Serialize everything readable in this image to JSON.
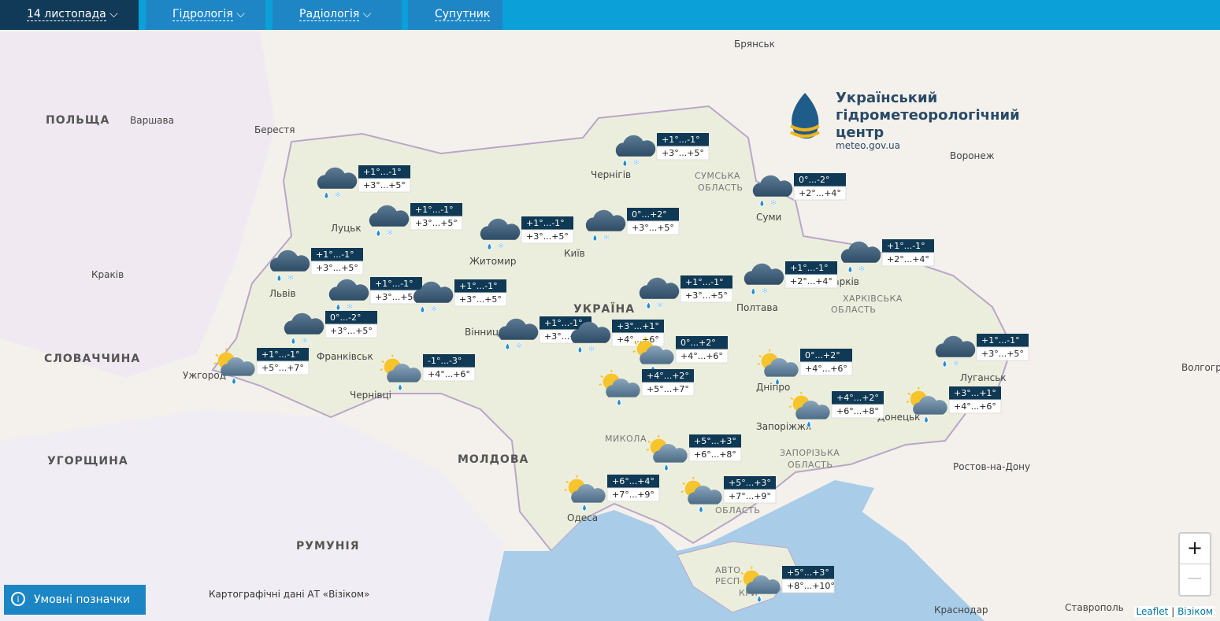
{
  "nav": {
    "items": [
      "14 листопада",
      "Гідрологія",
      "Радіологія",
      "Супутник"
    ]
  },
  "logo": {
    "line1": "Український",
    "line2": "гідрометеорологічний",
    "line3": "центр",
    "url": "meteo.gov.ua"
  },
  "map_labels": [
    "ПОЛЬЩА",
    "Варшава",
    "Берестя",
    "Брянськ",
    "Воронеж",
    "Луцьк",
    "Чернігів",
    "СУМСЬКА",
    "ОБЛАСТЬ",
    "Суми",
    "Житомир",
    "Київ",
    "Краків",
    "Львів",
    "Харків",
    "ХАРКІВСЬКА",
    "ОБЛАСТЬ",
    "УКРАЇНА",
    "Полтава",
    "СЛОВАЧЧИНА",
    "Франківськ",
    "Вінниця",
    "Ужгород",
    "Чернівці",
    "Дніпро",
    "Донецьк",
    "Луганськ",
    "Волгоград",
    "Запоріжжя",
    "УГОРЩИНА",
    "МОЛДОВА",
    "ЗАПОРІЗЬКА",
    "ОБЛАСТЬ",
    "Ростов-на-Дону",
    "МИКОЛА",
    "Одеса",
    "ОБЛАСТЬ",
    "РУМУНІЯ",
    "Краснодар",
    "Ставрополь",
    "АВТО",
    "РЕСП",
    "КРИ"
  ],
  "markers": [
    {
      "icon": "snow",
      "night": "+1°...-1°",
      "day": "+3°...+5°"
    },
    {
      "icon": "snow",
      "night": "+1°...-1°",
      "day": "+3°...+5°"
    },
    {
      "icon": "snow",
      "night": "+1°...-1°",
      "day": "+3°...+5°"
    },
    {
      "icon": "snow",
      "night": "0°...+2°",
      "day": "+3°...+5°"
    },
    {
      "icon": "snow",
      "night": "+1°...-1°",
      "day": "+3°...+5°"
    },
    {
      "icon": "snow",
      "night": "0°...-2°",
      "day": "+2°...+4°"
    },
    {
      "icon": "snow",
      "night": "+1°...-1°",
      "day": "+2°...+4°"
    },
    {
      "icon": "snow",
      "night": "+1°...-1°",
      "day": "+2°...+4°"
    },
    {
      "icon": "snow",
      "night": "+1°...-1°",
      "day": "+3°...+5°"
    },
    {
      "icon": "snow",
      "night": "+1°...-1°",
      "day": "+3°...+5°"
    },
    {
      "icon": "snow",
      "night": "+1°...-1°",
      "day": "+3°...+5°"
    },
    {
      "icon": "snow",
      "night": "+1°...-1°",
      "day": "+3°...+5°"
    },
    {
      "icon": "snow",
      "night": "0°...-2°",
      "day": "+3°...+5°"
    },
    {
      "icon": "snow",
      "night": "+1°...-1°",
      "day": "+3°...+5°"
    },
    {
      "icon": "snow",
      "night": "+3°...+1°",
      "day": "+4°...+6°"
    },
    {
      "icon": "sun",
      "night": "+1°...-1°",
      "day": "+5°...+7°"
    },
    {
      "icon": "sun",
      "night": "-1°...-3°",
      "day": "+4°...+6°"
    },
    {
      "icon": "sun",
      "night": "0°...+2°",
      "day": "+4°...+6°"
    },
    {
      "icon": "sun",
      "night": "+4°...+2°",
      "day": "+5°...+7°"
    },
    {
      "icon": "sun",
      "night": "0°...+2°",
      "day": "+4°...+6°"
    },
    {
      "icon": "sun",
      "night": "+4°...+2°",
      "day": "+6°...+8°"
    },
    {
      "icon": "sun",
      "night": "+3°...+1°",
      "day": "+4°...+6°"
    },
    {
      "icon": "snow",
      "night": "+1°...-1°",
      "day": "+3°...+5°"
    },
    {
      "icon": "sun",
      "night": "+5°...+3°",
      "day": "+6°...+8°"
    },
    {
      "icon": "sun",
      "night": "+6°...+4°",
      "day": "+7°...+9°"
    },
    {
      "icon": "sun",
      "night": "+5°...+3°",
      "day": "+7°...+9°"
    },
    {
      "icon": "sun",
      "night": "+5°...+3°",
      "day": "+8°...+10°"
    }
  ],
  "legend_button": "Умовні позначки",
  "credits": "Картографічні дані АТ «Візіком»",
  "attribution": {
    "leaflet": "Leaflet",
    "sep": "|",
    "vizicom": "Візіком"
  },
  "zoom": {
    "in": "+",
    "out": "—"
  }
}
